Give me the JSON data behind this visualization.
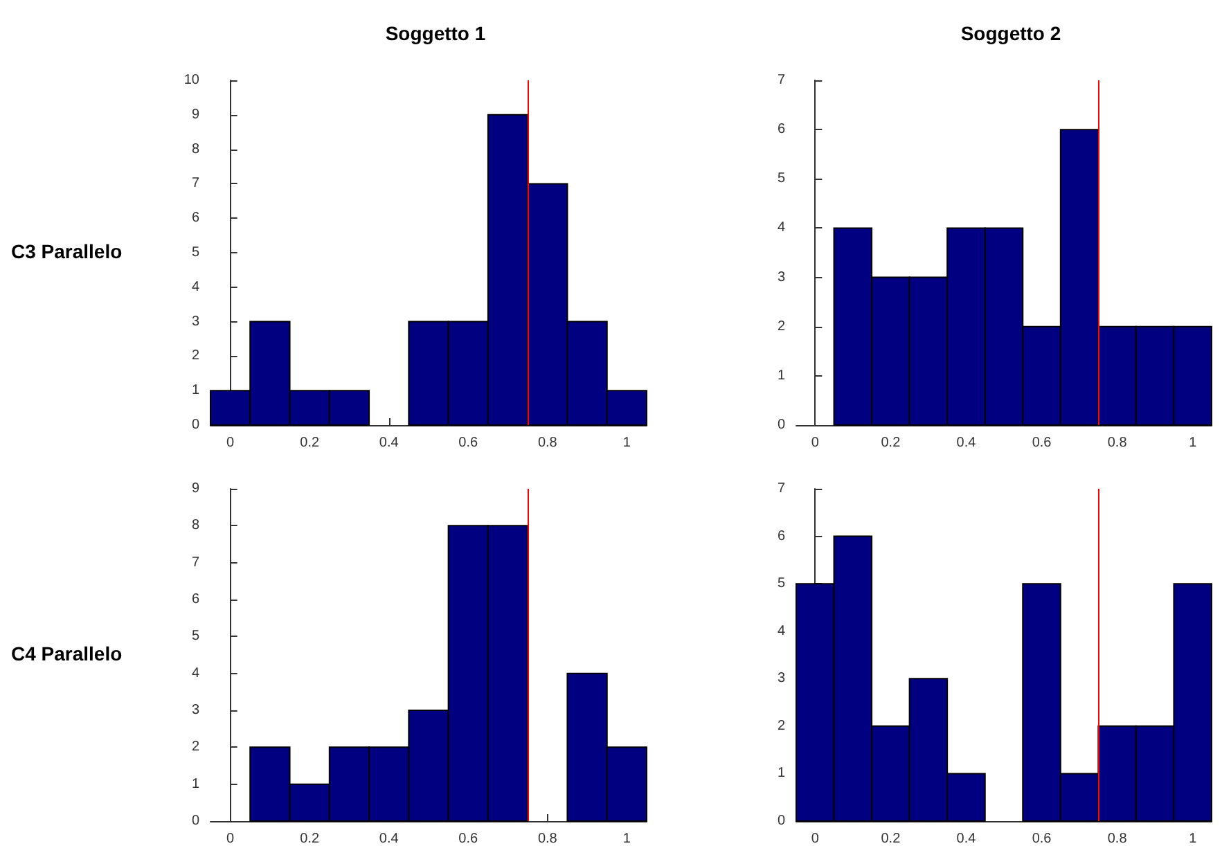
{
  "chart_data": [
    {
      "type": "histogram",
      "title": "Soggetto 1",
      "ylabel": "C3 Parallelo",
      "bins": [
        -0.05,
        0.05,
        0.15,
        0.25,
        0.35,
        0.45,
        0.55,
        0.65,
        0.75,
        0.85,
        0.95,
        1.05
      ],
      "values": [
        1,
        3,
        1,
        1,
        0,
        3,
        3,
        9,
        7,
        3,
        1
      ],
      "color": "#000080",
      "xlim": [
        -0.05,
        1.05
      ],
      "xticks": [
        0,
        0.2,
        0.4,
        0.6,
        0.8,
        1
      ],
      "ylim": [
        0,
        10
      ],
      "yticks": [
        0,
        1,
        2,
        3,
        4,
        5,
        6,
        7,
        8,
        9,
        10
      ],
      "grid": false,
      "ref_lines": [
        {
          "axis": "x",
          "value": 0.75,
          "color": "#ff0000"
        }
      ]
    },
    {
      "type": "histogram",
      "title": "Soggetto 2",
      "bins": [
        -0.05,
        0.05,
        0.15,
        0.25,
        0.35,
        0.45,
        0.55,
        0.65,
        0.75,
        0.85,
        0.95,
        1.05
      ],
      "values": [
        0,
        4,
        3,
        3,
        4,
        4,
        2,
        6,
        2,
        2,
        2
      ],
      "color": "#000080",
      "xlim": [
        -0.05,
        1.05
      ],
      "xticks": [
        0,
        0.2,
        0.4,
        0.6,
        0.8,
        1
      ],
      "ylim": [
        0,
        7
      ],
      "yticks": [
        0,
        1,
        2,
        3,
        4,
        5,
        6,
        7
      ],
      "grid": false,
      "ref_lines": [
        {
          "axis": "x",
          "value": 0.75,
          "color": "#ff0000"
        }
      ]
    },
    {
      "type": "histogram",
      "ylabel": "C4 Parallelo",
      "bins": [
        -0.05,
        0.05,
        0.15,
        0.25,
        0.35,
        0.45,
        0.55,
        0.65,
        0.75,
        0.85,
        0.95,
        1.05
      ],
      "values": [
        0,
        2,
        1,
        2,
        2,
        3,
        8,
        8,
        0,
        4,
        2
      ],
      "color": "#000080",
      "xlim": [
        -0.05,
        1.05
      ],
      "xticks": [
        0,
        0.2,
        0.4,
        0.6,
        0.8,
        1
      ],
      "ylim": [
        0,
        9
      ],
      "yticks": [
        0,
        1,
        2,
        3,
        4,
        5,
        6,
        7,
        8,
        9
      ],
      "grid": false,
      "ref_lines": [
        {
          "axis": "x",
          "value": 0.75,
          "color": "#ff0000"
        }
      ]
    },
    {
      "type": "histogram",
      "bins": [
        -0.05,
        0.05,
        0.15,
        0.25,
        0.35,
        0.45,
        0.55,
        0.65,
        0.75,
        0.85,
        0.95,
        1.05
      ],
      "values": [
        5,
        6,
        2,
        3,
        1,
        0,
        5,
        1,
        2,
        2,
        5
      ],
      "color": "#000080",
      "xlim": [
        -0.05,
        1.05
      ],
      "xticks": [
        0,
        0.2,
        0.4,
        0.6,
        0.8,
        1
      ],
      "ylim": [
        0,
        7
      ],
      "yticks": [
        0,
        1,
        2,
        3,
        4,
        5,
        6,
        7
      ],
      "grid": false,
      "ref_lines": [
        {
          "axis": "x",
          "value": 0.75,
          "color": "#ff0000"
        }
      ]
    }
  ]
}
